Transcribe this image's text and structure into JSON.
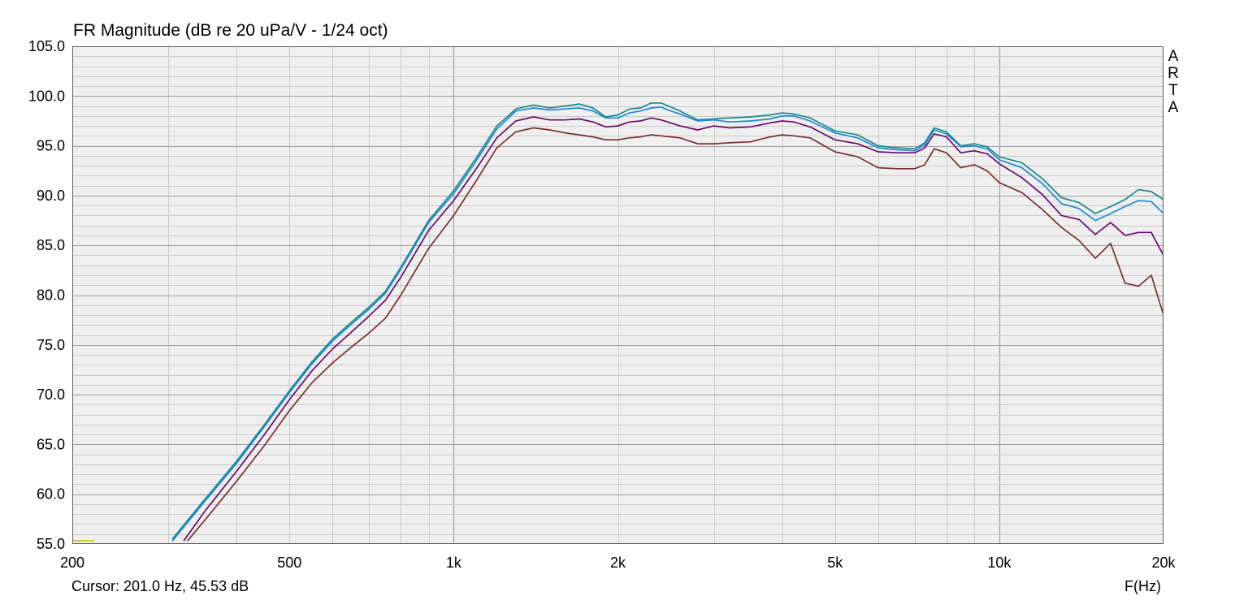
{
  "header": {
    "title": "FR Magnitude (dB re 20 uPa/V - 1/24 oct)"
  },
  "footer": {
    "cursor": "Cursor: 201.0 Hz, 45.53 dB",
    "x_unit": "F(Hz)"
  },
  "brand": {
    "letters": [
      "A",
      "R",
      "T",
      "A"
    ]
  },
  "colors": {
    "background": "#ffffff",
    "plot_area": "#efefef",
    "grid_major": "#a0a0a0",
    "grid_minor": "#cacaca",
    "cursor_marker": "#c0c000"
  },
  "chart_data": {
    "type": "line",
    "title": "FR Magnitude (dB re 20 uPa/V - 1/24 oct)",
    "xlabel": "F(Hz)",
    "ylabel": "",
    "x_scale": "log",
    "xlim": [
      200,
      20000
    ],
    "ylim": [
      55,
      105
    ],
    "grid": true,
    "x_ticks": [
      {
        "value": 200,
        "label": "200"
      },
      {
        "value": 500,
        "label": "500"
      },
      {
        "value": 1000,
        "label": "1k"
      },
      {
        "value": 2000,
        "label": "2k"
      },
      {
        "value": 5000,
        "label": "5k"
      },
      {
        "value": 10000,
        "label": "10k"
      },
      {
        "value": 20000,
        "label": "20k"
      }
    ],
    "y_ticks": [
      "55.0",
      "60.0",
      "65.0",
      "70.0",
      "75.0",
      "80.0",
      "85.0",
      "90.0",
      "95.0",
      "100.0",
      "105.0"
    ],
    "cursor": {
      "x": 201,
      "y": 45.53
    },
    "series": [
      {
        "color": "#1a8a8a",
        "x": [
          305,
          350,
          400,
          450,
          500,
          550,
          600,
          650,
          700,
          750,
          800,
          900,
          1000,
          1100,
          1200,
          1300,
          1400,
          1500,
          1600,
          1700,
          1800,
          1900,
          2000,
          2100,
          2200,
          2300,
          2400,
          2500,
          2600,
          2800,
          3000,
          3200,
          3500,
          3800,
          4000,
          4200,
          4500,
          5000,
          5500,
          6000,
          6500,
          7000,
          7300,
          7600,
          8000,
          8500,
          9000,
          9500,
          10000,
          11000,
          12000,
          13000,
          14000,
          15000,
          16000,
          17000,
          18000,
          19000,
          20000
        ],
        "y": [
          55.5,
          59.5,
          63.3,
          67.0,
          70.4,
          73.3,
          75.6,
          77.3,
          78.8,
          80.4,
          82.8,
          87.5,
          90.5,
          93.8,
          97.0,
          98.7,
          99.1,
          98.8,
          99.0,
          99.2,
          98.8,
          97.9,
          98.1,
          98.7,
          98.8,
          99.3,
          99.3,
          98.9,
          98.5,
          97.6,
          97.7,
          97.8,
          97.9,
          98.1,
          98.3,
          98.2,
          97.8,
          96.5,
          96.1,
          95.0,
          94.8,
          94.7,
          95.3,
          96.8,
          96.4,
          95.0,
          95.2,
          94.9,
          93.9,
          93.3,
          91.7,
          89.8,
          89.3,
          88.2,
          88.9,
          89.6,
          90.6,
          90.4,
          89.6
        ]
      },
      {
        "color": "#1e88d8",
        "x": [
          305,
          350,
          400,
          450,
          500,
          550,
          600,
          650,
          700,
          750,
          800,
          900,
          1000,
          1100,
          1200,
          1300,
          1400,
          1500,
          1600,
          1700,
          1800,
          1900,
          2000,
          2100,
          2200,
          2300,
          2400,
          2500,
          2600,
          2800,
          3000,
          3200,
          3500,
          3800,
          4000,
          4200,
          4500,
          5000,
          5500,
          6000,
          6500,
          7000,
          7300,
          7600,
          8000,
          8500,
          9000,
          9500,
          10000,
          11000,
          12000,
          13000,
          14000,
          15000,
          16000,
          17000,
          18000,
          19000,
          20000
        ],
        "y": [
          55.3,
          59.3,
          63.1,
          66.8,
          70.2,
          73.1,
          75.4,
          77.1,
          78.6,
          80.2,
          82.6,
          87.3,
          90.2,
          93.5,
          96.7,
          98.5,
          98.8,
          98.6,
          98.7,
          98.8,
          98.5,
          97.8,
          97.8,
          98.3,
          98.5,
          98.8,
          98.9,
          98.5,
          98.2,
          97.5,
          97.6,
          97.4,
          97.5,
          97.7,
          98.0,
          98.0,
          97.5,
          96.3,
          95.8,
          94.8,
          94.6,
          94.5,
          95.1,
          96.6,
          96.2,
          94.9,
          95.0,
          94.7,
          93.6,
          92.8,
          91.2,
          89.2,
          88.7,
          87.5,
          88.2,
          88.9,
          89.5,
          89.4,
          88.2
        ]
      },
      {
        "color": "#6a0a6a",
        "x": [
          320,
          350,
          400,
          450,
          500,
          550,
          600,
          650,
          700,
          750,
          800,
          900,
          1000,
          1100,
          1200,
          1300,
          1400,
          1500,
          1600,
          1700,
          1800,
          1900,
          2000,
          2100,
          2200,
          2300,
          2400,
          2500,
          2600,
          2800,
          3000,
          3200,
          3500,
          3800,
          4000,
          4200,
          4500,
          5000,
          5500,
          6000,
          6500,
          7000,
          7300,
          7600,
          8000,
          8500,
          9000,
          9500,
          10000,
          11000,
          12000,
          13000,
          14000,
          15000,
          16000,
          17000,
          18000,
          19000,
          20000
        ],
        "y": [
          55.3,
          58.3,
          62.3,
          66.0,
          69.5,
          72.4,
          74.6,
          76.3,
          77.9,
          79.5,
          81.8,
          86.5,
          89.5,
          92.7,
          95.8,
          97.5,
          97.9,
          97.6,
          97.6,
          97.7,
          97.4,
          96.9,
          97.0,
          97.4,
          97.5,
          97.8,
          97.6,
          97.3,
          97.0,
          96.6,
          97.0,
          96.8,
          96.9,
          97.3,
          97.5,
          97.4,
          96.9,
          95.6,
          95.2,
          94.4,
          94.3,
          94.3,
          94.8,
          96.2,
          95.9,
          94.3,
          94.5,
          94.2,
          93.2,
          91.8,
          90.1,
          88.0,
          87.6,
          86.1,
          87.3,
          86.0,
          86.3,
          86.3,
          84.0
        ]
      },
      {
        "color": "#7a3030",
        "x": [
          325,
          350,
          400,
          450,
          500,
          550,
          600,
          650,
          700,
          750,
          800,
          900,
          1000,
          1100,
          1200,
          1300,
          1400,
          1500,
          1600,
          1700,
          1800,
          1900,
          2000,
          2100,
          2200,
          2300,
          2400,
          2500,
          2600,
          2800,
          3000,
          3200,
          3500,
          3800,
          4000,
          4200,
          4500,
          5000,
          5500,
          6000,
          6500,
          7000,
          7300,
          7600,
          8000,
          8500,
          9000,
          9500,
          10000,
          11000,
          12000,
          13000,
          14000,
          15000,
          16000,
          17000,
          18000,
          19000,
          20000
        ],
        "y": [
          55.3,
          57.4,
          61.3,
          64.9,
          68.4,
          71.2,
          73.2,
          74.8,
          76.2,
          77.7,
          80.0,
          84.7,
          88.0,
          91.5,
          94.8,
          96.4,
          96.8,
          96.6,
          96.3,
          96.1,
          95.9,
          95.6,
          95.6,
          95.8,
          95.9,
          96.1,
          96.0,
          95.9,
          95.8,
          95.2,
          95.2,
          95.3,
          95.4,
          95.9,
          96.1,
          96.0,
          95.8,
          94.4,
          93.9,
          92.8,
          92.7,
          92.7,
          93.1,
          94.7,
          94.3,
          92.8,
          93.1,
          92.5,
          91.3,
          90.3,
          88.6,
          86.8,
          85.5,
          83.7,
          85.2,
          81.2,
          80.9,
          82.0,
          78.0
        ]
      }
    ]
  }
}
